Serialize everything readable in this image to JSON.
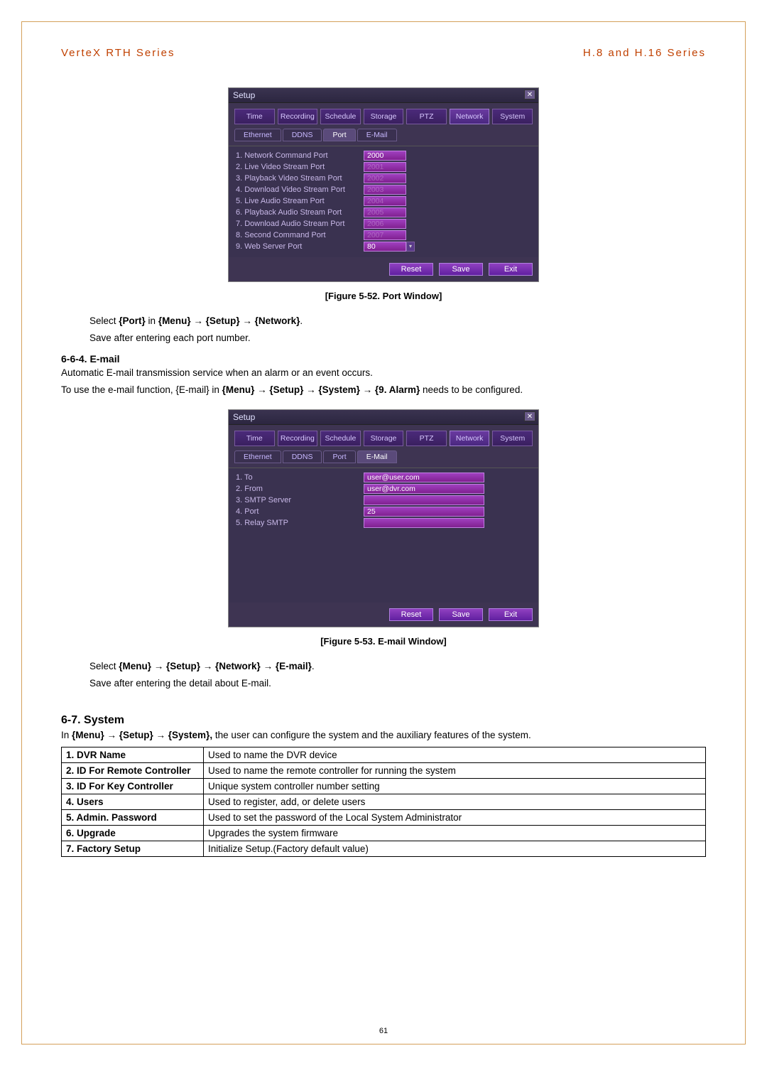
{
  "header": {
    "left": "VerteX RTH Series",
    "right": "H.8 and H.16 Series"
  },
  "setup": {
    "title": "Setup",
    "close": "✕",
    "tabs": [
      "Time",
      "Recording",
      "Schedule",
      "Storage",
      "PTZ",
      "Network",
      "System"
    ],
    "tabs_active_index": 5,
    "colors": {
      "window_bg": "#3a3250",
      "tab_bg": "#4b2a7a",
      "btn_bg": "#9040c0",
      "input_bg": "#a040c0"
    }
  },
  "port_window": {
    "subtabs": [
      "Ethernet",
      "DDNS",
      "Port",
      "E-Mail"
    ],
    "subtabs_active_index": 2,
    "rows": [
      {
        "label": "1. Network Command Port",
        "value": "2000",
        "bright": true
      },
      {
        "label": "2. Live Video Stream Port",
        "value": "2001",
        "bright": false
      },
      {
        "label": "3. Playback Video Stream Port",
        "value": "2002",
        "bright": false
      },
      {
        "label": "4. Download Video Stream Port",
        "value": "2003",
        "bright": false
      },
      {
        "label": "5. Live Audio Stream Port",
        "value": "2004",
        "bright": false
      },
      {
        "label": "6. Playback Audio Stream Port",
        "value": "2005",
        "bright": false
      },
      {
        "label": "7. Download Audio Stream Port",
        "value": "2006",
        "bright": false
      },
      {
        "label": "8. Second Command Port",
        "value": "2007",
        "bright": false
      },
      {
        "label": "9. Web Server Port",
        "value": "80",
        "bright": true,
        "dropdown": true
      }
    ],
    "buttons": [
      "Reset",
      "Save",
      "Exit"
    ]
  },
  "email_window": {
    "subtabs": [
      "Ethernet",
      "DDNS",
      "Port",
      "E-Mail"
    ],
    "subtabs_active_index": 3,
    "rows": [
      {
        "label": "1. To",
        "value": "user@user.com",
        "bright": true,
        "wide": true
      },
      {
        "label": "2. From",
        "value": "user@dvr.com",
        "bright": true,
        "wide": true
      },
      {
        "label": "3. SMTP Server",
        "value": "",
        "bright": false,
        "wide": true
      },
      {
        "label": "4. Port",
        "value": "25",
        "bright": true,
        "wide": true
      },
      {
        "label": "5. Relay SMTP",
        "value": "",
        "bright": false,
        "wide": true
      }
    ],
    "buttons": [
      "Reset",
      "Save",
      "Exit"
    ]
  },
  "captions": {
    "fig52": "[Figure 5-52. Port Window]",
    "fig53": "[Figure 5-53. E-mail Window]"
  },
  "text": {
    "select_port_pre": "Select ",
    "select_port_bold": "{Port}",
    "select_port_mid": " in ",
    "select_port_path": "{Menu} → {Setup} → {Network}",
    "select_port_dot": ".",
    "save_port": "Save after entering each port number.",
    "sec_664": "6-6-4.  E-mail",
    "email_p1": "Automatic E-mail transmission service when an alarm or an event occurs.",
    "email_p2a": "To use the e-mail function, {E-mail} in ",
    "email_p2b": "{Menu} → {Setup} → {System} → {9. Alarm}",
    "email_p2c": " needs to be configured.",
    "select_email_pre": "Select ",
    "select_email_path": "{Menu} → {Setup} → {Network} → {E-mail}",
    "select_email_dot": ".",
    "save_email": "Save after entering the detail about E-mail.",
    "sec_67": "6-7.  System",
    "sys_in_pre": "In ",
    "sys_in_bold": "{Menu} → {Setup} → {System},",
    "sys_in_rest": " the user can configure the system and the auxiliary features of the system."
  },
  "system_table": {
    "rows": [
      {
        "lbl": "1. DVR Name",
        "desc": "Used to name the DVR device"
      },
      {
        "lbl": "2. ID For Remote Controller",
        "desc": "Used to name the remote controller for running the system"
      },
      {
        "lbl": "3. ID For Key Controller",
        "desc": "Unique system controller number setting"
      },
      {
        "lbl": "4. Users",
        "desc": "Used to register, add, or delete users"
      },
      {
        "lbl": "5. Admin. Password",
        "desc": "Used to set the password of the Local System Administrator"
      },
      {
        "lbl": "6. Upgrade",
        "desc": "Upgrades the system firmware"
      },
      {
        "lbl": "7. Factory Setup",
        "desc": "Initialize Setup.(Factory default value)"
      }
    ]
  },
  "page_num": "61"
}
